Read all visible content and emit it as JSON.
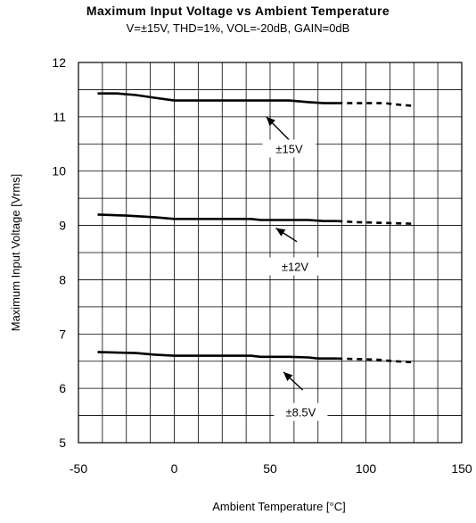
{
  "chart_data": {
    "type": "line",
    "title": "Maximum Input Voltage vs Ambient Temperature",
    "subtitle": "V=±15V, THD=1%, VOL=-20dB, GAIN=0dB",
    "xlabel": "Ambient Temperature [°C]",
    "ylabel": "Maximum Input Voltage [Vrms]",
    "xlim": [
      -50,
      150
    ],
    "ylim": [
      5,
      12
    ],
    "x_ticks": [
      -50,
      0,
      50,
      100,
      150
    ],
    "y_ticks": [
      5,
      6,
      7,
      8,
      9,
      10,
      11,
      12
    ],
    "grid": true,
    "series": [
      {
        "name": "±15V",
        "points": [
          [
            -40,
            11.43
          ],
          [
            -30,
            11.43
          ],
          [
            -20,
            11.4
          ],
          [
            -10,
            11.35
          ],
          [
            0,
            11.3
          ],
          [
            20,
            11.3
          ],
          [
            40,
            11.3
          ],
          [
            60,
            11.3
          ],
          [
            70,
            11.27
          ],
          [
            78,
            11.25
          ],
          [
            85,
            11.25
          ]
        ],
        "dashed_points": [
          [
            85,
            11.25
          ],
          [
            100,
            11.25
          ],
          [
            110,
            11.25
          ],
          [
            118,
            11.22
          ],
          [
            125,
            11.2
          ]
        ],
        "annotation": "±15V"
      },
      {
        "name": "±12V",
        "points": [
          [
            -40,
            9.2
          ],
          [
            -25,
            9.18
          ],
          [
            -10,
            9.15
          ],
          [
            0,
            9.12
          ],
          [
            20,
            9.12
          ],
          [
            40,
            9.12
          ],
          [
            45,
            9.1
          ],
          [
            60,
            9.1
          ],
          [
            70,
            9.1
          ],
          [
            78,
            9.08
          ],
          [
            85,
            9.08
          ]
        ],
        "dashed_points": [
          [
            85,
            9.08
          ],
          [
            95,
            9.06
          ],
          [
            105,
            9.05
          ],
          [
            115,
            9.04
          ],
          [
            125,
            9.03
          ]
        ],
        "annotation": "±12V"
      },
      {
        "name": "±8.5V",
        "points": [
          [
            -40,
            6.67
          ],
          [
            -20,
            6.65
          ],
          [
            -10,
            6.62
          ],
          [
            0,
            6.6
          ],
          [
            20,
            6.6
          ],
          [
            40,
            6.6
          ],
          [
            45,
            6.58
          ],
          [
            60,
            6.58
          ],
          [
            70,
            6.57
          ],
          [
            75,
            6.55
          ],
          [
            85,
            6.55
          ]
        ],
        "dashed_points": [
          [
            85,
            6.55
          ],
          [
            95,
            6.54
          ],
          [
            105,
            6.53
          ],
          [
            115,
            6.5
          ],
          [
            125,
            6.48
          ]
        ],
        "annotation": "±8.5V"
      }
    ]
  }
}
